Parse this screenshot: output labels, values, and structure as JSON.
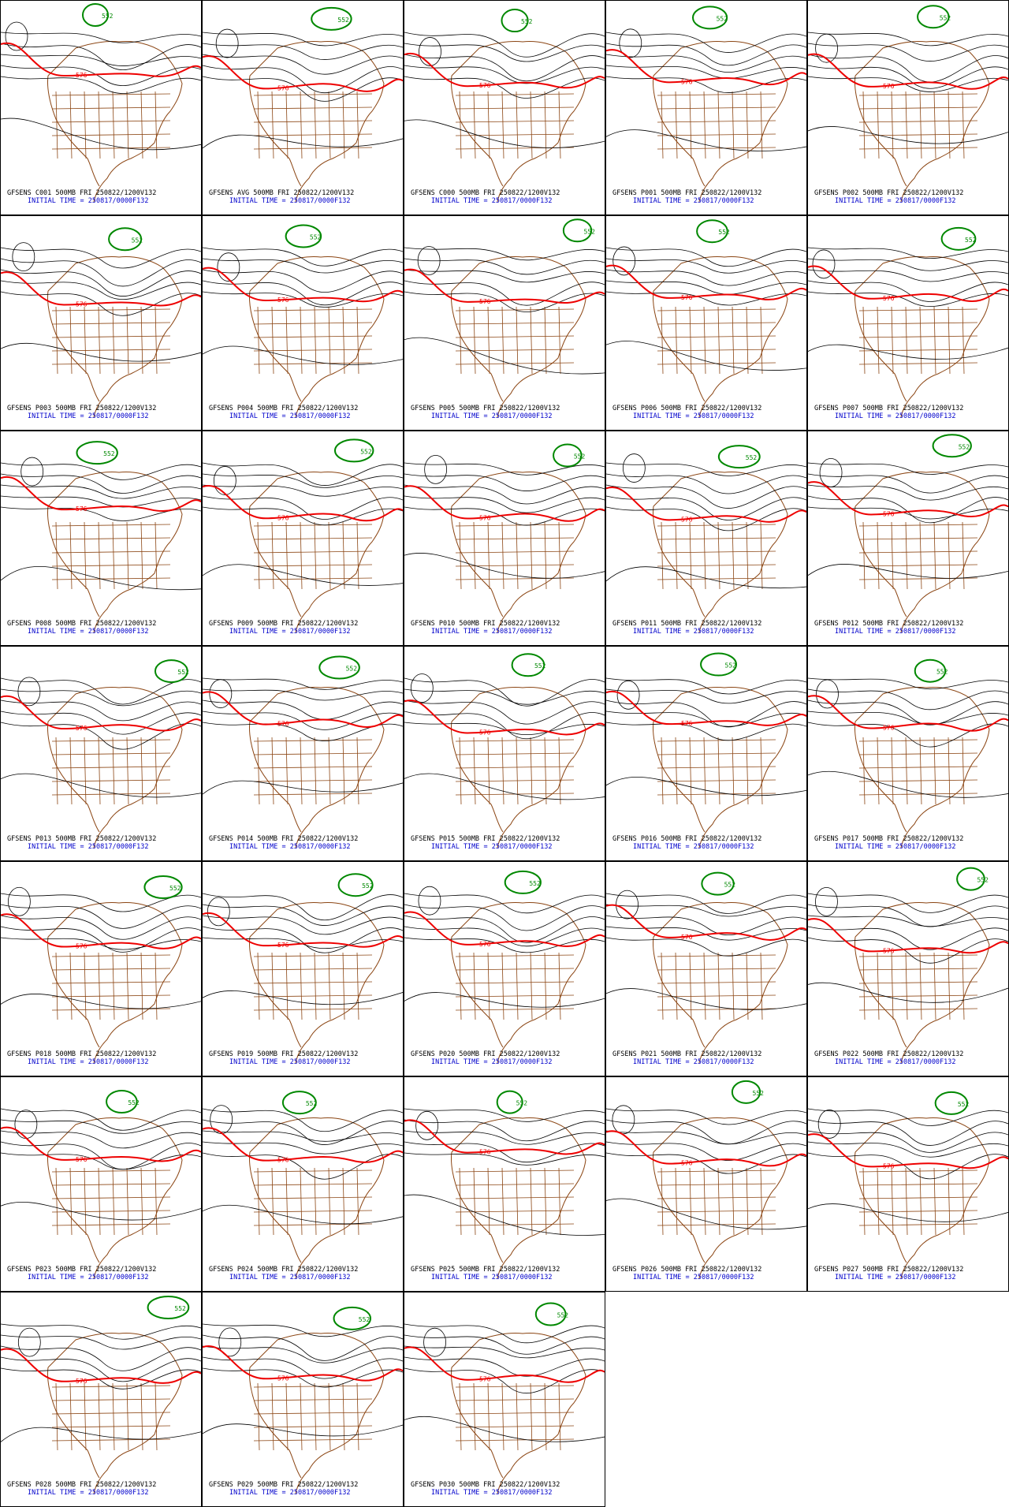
{
  "panels": [
    {
      "line1": "GFSENS C001 500MB FRI 250822/1200V132",
      "line2": "INITIAL TIME = 250817/0000F132",
      "contour_labels": [
        "576",
        "552"
      ]
    },
    {
      "line1": "GFSENS AVG 500MB FRI 250822/1200V132",
      "line2": "INITIAL TIME = 250817/0000F132",
      "contour_labels": [
        "576",
        "552"
      ]
    },
    {
      "line1": "GFSENS C000 500MB FRI 250822/1200V132",
      "line2": "INITIAL TIME = 250817/0000F132",
      "contour_labels": [
        "576",
        "552"
      ]
    },
    {
      "line1": "GFSENS P001 500MB FRI 250822/1200V132",
      "line2": "INITIAL TIME = 250817/0000F132",
      "contour_labels": [
        "576",
        "552"
      ]
    },
    {
      "line1": "GFSENS P002 500MB FRI 250822/1200V132",
      "line2": "INITIAL TIME = 250817/0000F132",
      "contour_labels": [
        "576",
        "552"
      ]
    },
    {
      "line1": "GFSENS P003 500MB FRI 250822/1200V132",
      "line2": "INITIAL TIME = 250817/0000F132",
      "contour_labels": [
        "576",
        "552"
      ]
    },
    {
      "line1": "GFSENS P004 500MB FRI 250822/1200V132",
      "line2": "INITIAL TIME = 250817/0000F132",
      "contour_labels": [
        "576",
        "552"
      ]
    },
    {
      "line1": "GFSENS P005 500MB FRI 250822/1200V132",
      "line2": "INITIAL TIME = 250817/0000F132",
      "contour_labels": [
        "576",
        "552"
      ]
    },
    {
      "line1": "GFSENS P006 500MB FRI 250822/1200V132",
      "line2": "INITIAL TIME = 250817/0000F132",
      "contour_labels": [
        "576",
        "552"
      ]
    },
    {
      "line1": "GFSENS P007 500MB FRI 250822/1200V132",
      "line2": "INITIAL TIME = 250817/0000F132",
      "contour_labels": [
        "576",
        "552"
      ]
    },
    {
      "line1": "GFSENS P008 500MB FRI 250822/1200V132",
      "line2": "INITIAL TIME = 250817/0000F132",
      "contour_labels": [
        "576",
        "552"
      ]
    },
    {
      "line1": "GFSENS P009 500MB FRI 250822/1200V132",
      "line2": "INITIAL TIME = 250817/0000F132",
      "contour_labels": [
        "576",
        "552"
      ]
    },
    {
      "line1": "GFSENS P010 500MB FRI 250822/1200V132",
      "line2": "INITIAL TIME = 250817/0000F132",
      "contour_labels": [
        "576",
        "552"
      ]
    },
    {
      "line1": "GFSENS P011 500MB FRI 250822/1200V132",
      "line2": "INITIAL TIME = 250817/0000F132",
      "contour_labels": [
        "576",
        "552"
      ]
    },
    {
      "line1": "GFSENS P012 500MB FRI 250822/1200V132",
      "line2": "INITIAL TIME = 250817/0000F132",
      "contour_labels": [
        "576",
        "552"
      ]
    },
    {
      "line1": "GFSENS P013 500MB FRI 250822/1200V132",
      "line2": "INITIAL TIME = 250817/0000F132",
      "contour_labels": [
        "576",
        "552"
      ]
    },
    {
      "line1": "GFSENS P014 500MB FRI 250822/1200V132",
      "line2": "INITIAL TIME = 250817/0000F132",
      "contour_labels": [
        "576",
        "552"
      ]
    },
    {
      "line1": "GFSENS P015 500MB FRI 250822/1200V132",
      "line2": "INITIAL TIME = 250817/0000F132",
      "contour_labels": [
        "576",
        "552"
      ]
    },
    {
      "line1": "GFSENS P016 500MB FRI 250822/1200V132",
      "line2": "INITIAL TIME = 250817/0000F132",
      "contour_labels": [
        "576",
        "552"
      ]
    },
    {
      "line1": "GFSENS P017 500MB FRI 250822/1200V132",
      "line2": "INITIAL TIME = 250817/0000F132",
      "contour_labels": [
        "576",
        "552"
      ]
    },
    {
      "line1": "GFSENS P018 500MB FRI 250822/1200V132",
      "line2": "INITIAL TIME = 250817/0000F132",
      "contour_labels": [
        "576",
        "552"
      ]
    },
    {
      "line1": "GFSENS P019 500MB FRI 250822/1200V132",
      "line2": "INITIAL TIME = 250817/0000F132",
      "contour_labels": [
        "576",
        "552"
      ]
    },
    {
      "line1": "GFSENS P020 500MB FRI 250822/1200V132",
      "line2": "INITIAL TIME = 250817/0000F132",
      "contour_labels": [
        "576",
        "552"
      ]
    },
    {
      "line1": "GFSENS P021 500MB FRI 250822/1200V132",
      "line2": "INITIAL TIME = 250817/0000F132",
      "contour_labels": [
        "576",
        "552"
      ]
    },
    {
      "line1": "GFSENS P022 500MB FRI 250822/1200V132",
      "line2": "INITIAL TIME = 250817/0000F132",
      "contour_labels": [
        "576",
        "552"
      ]
    },
    {
      "line1": "GFSENS P023 500MB FRI 250822/1200V132",
      "line2": "INITIAL TIME = 250817/0000F132",
      "contour_labels": [
        "576",
        "552"
      ]
    },
    {
      "line1": "GFSENS P024 500MB FRI 250822/1200V132",
      "line2": "INITIAL TIME = 250817/0000F132",
      "contour_labels": [
        "576",
        "552"
      ]
    },
    {
      "line1": "GFSENS P025 500MB FRI 250822/1200V132",
      "line2": "INITIAL TIME = 250817/0000F132",
      "contour_labels": [
        "576",
        "552"
      ]
    },
    {
      "line1": "GFSENS P026 500MB FRI 250822/1200V132",
      "line2": "INITIAL TIME = 250817/0000F132",
      "contour_labels": [
        "576",
        "552"
      ]
    },
    {
      "line1": "GFSENS P027 500MB FRI 250822/1200V132",
      "line2": "INITIAL TIME = 250817/0000F132",
      "contour_labels": [
        "576",
        "552"
      ]
    },
    {
      "line1": "GFSENS P028 500MB FRI 250822/1200V132",
      "line2": "INITIAL TIME = 250817/0000F132",
      "contour_labels": [
        "576",
        "552"
      ]
    },
    {
      "line1": "GFSENS P029 500MB FRI 250822/1200V132",
      "line2": "INITIAL TIME = 250817/0000F132",
      "contour_labels": [
        "576",
        "552"
      ]
    },
    {
      "line1": "GFSENS P030 500MB FRI 250822/1200V132",
      "line2": "INITIAL TIME = 250817/0000F132",
      "contour_labels": [
        "576",
        "552"
      ]
    }
  ]
}
